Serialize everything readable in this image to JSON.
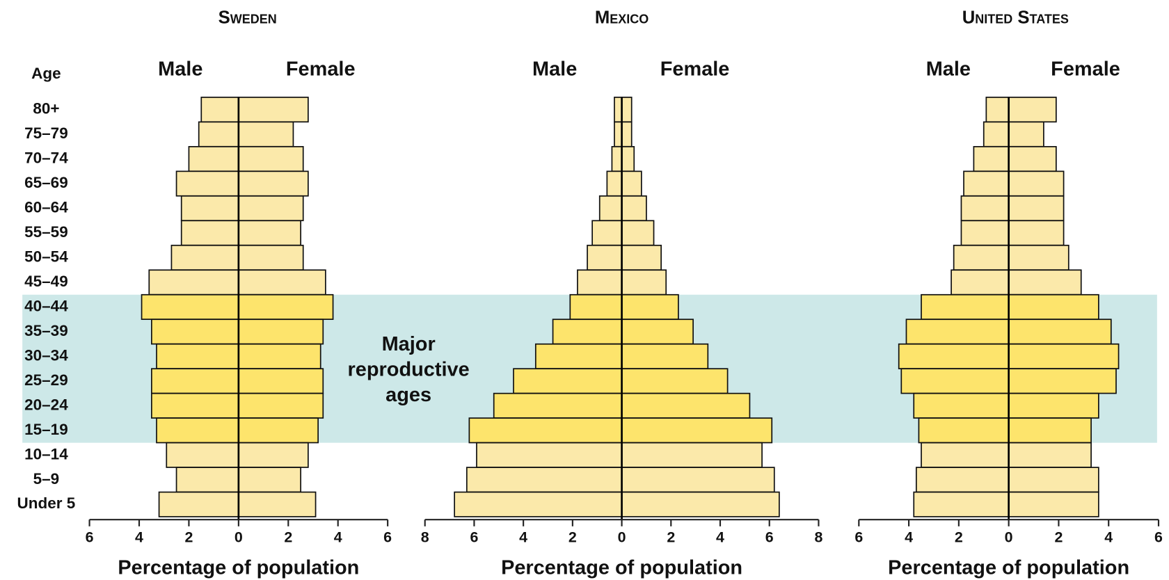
{
  "annotation": [
    "Major",
    "reproductive",
    "ages"
  ],
  "highlight": {
    "from": "40–44",
    "to": "15–19",
    "color": "#cde8e8"
  },
  "chart_data": [
    {
      "type": "pyramid",
      "title": "Sweden",
      "ylabel": "Age",
      "xlabel": "Percentage of population",
      "categories": [
        "80+",
        "75–79",
        "70–74",
        "65–69",
        "60–64",
        "55–59",
        "50–54",
        "45–49",
        "40–44",
        "35–39",
        "30–34",
        "25–29",
        "20–24",
        "15–19",
        "10–14",
        "5–9",
        "Under 5"
      ],
      "color": "#fbe9aa",
      "highlight_color": "#fde46c",
      "series": [
        {
          "name": "Male",
          "values": [
            1.5,
            1.6,
            2.0,
            2.5,
            2.3,
            2.3,
            2.7,
            3.6,
            3.9,
            3.5,
            3.3,
            3.5,
            3.5,
            3.3,
            2.9,
            2.5,
            3.2
          ]
        },
        {
          "name": "Female",
          "values": [
            2.8,
            2.2,
            2.6,
            2.8,
            2.6,
            2.5,
            2.6,
            3.5,
            3.8,
            3.4,
            3.3,
            3.4,
            3.4,
            3.2,
            2.8,
            2.5,
            3.1
          ]
        }
      ],
      "xlim": [
        -6,
        6
      ],
      "xticks": [
        {
          "value": -6,
          "label": "6"
        },
        {
          "value": -4,
          "label": "4"
        },
        {
          "value": -2,
          "label": "2"
        },
        0,
        2,
        4,
        6
      ]
    },
    {
      "type": "pyramid",
      "title": "Mexico",
      "xlabel": "Percentage of population",
      "categories": [
        null,
        null,
        null,
        null,
        null,
        null,
        null,
        null,
        null,
        null,
        null,
        null,
        null,
        null,
        null,
        null,
        null
      ],
      "color": "#fbe9aa",
      "highlight_color": "#fde46c",
      "series": [
        {
          "name": "Male",
          "values": [
            0.3,
            0.3,
            0.4,
            0.6,
            0.9,
            1.2,
            1.4,
            1.8,
            2.1,
            2.8,
            3.5,
            4.4,
            5.2,
            6.2,
            5.9,
            6.3,
            6.8
          ]
        },
        {
          "name": "Female",
          "values": [
            0.4,
            0.4,
            0.5,
            0.8,
            1.0,
            1.3,
            1.6,
            1.8,
            2.3,
            2.9,
            3.5,
            4.3,
            5.2,
            6.1,
            5.7,
            6.2,
            6.4
          ]
        }
      ],
      "xlim": [
        -8,
        8
      ],
      "xticks": [
        {
          "value": -8,
          "label": "8"
        },
        {
          "value": -6,
          "label": "6"
        },
        {
          "value": -4,
          "label": "4"
        },
        {
          "value": -2,
          "label": "2"
        },
        0,
        2,
        4,
        6,
        8
      ]
    },
    {
      "type": "pyramid",
      "title": "United States",
      "xlabel": "Percentage of population",
      "categories": [
        null,
        null,
        null,
        null,
        null,
        null,
        null,
        null,
        null,
        null,
        null,
        null,
        null,
        null,
        null,
        null,
        null
      ],
      "color": "#fbe9aa",
      "highlight_color": "#fde46c",
      "series": [
        {
          "name": "Male",
          "values": [
            0.9,
            1.0,
            1.4,
            1.8,
            1.9,
            1.9,
            2.2,
            2.3,
            3.5,
            4.1,
            4.4,
            4.3,
            3.8,
            3.6,
            3.5,
            3.7,
            3.8
          ]
        },
        {
          "name": "Female",
          "values": [
            1.9,
            1.4,
            1.9,
            2.2,
            2.2,
            2.2,
            2.4,
            2.9,
            3.6,
            4.1,
            4.4,
            4.3,
            3.6,
            3.3,
            3.3,
            3.6,
            3.6
          ]
        }
      ],
      "xlim": [
        -6,
        6
      ],
      "xticks": [
        {
          "value": -6,
          "label": "6"
        },
        {
          "value": -4,
          "label": "4"
        },
        {
          "value": -2,
          "label": "2"
        },
        0,
        2,
        4,
        6
      ]
    }
  ]
}
